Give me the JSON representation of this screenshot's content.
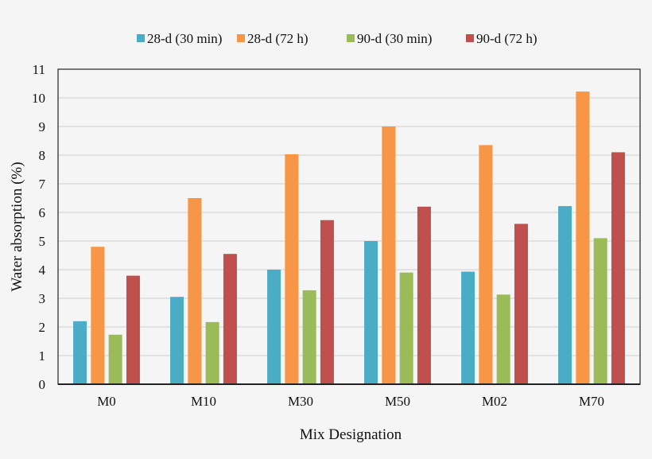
{
  "chart_data": {
    "type": "bar",
    "title": "",
    "xlabel": "Mix Designation",
    "ylabel": "Water absorption (%)",
    "ylim": [
      0,
      11
    ],
    "yticks": [
      0,
      1,
      2,
      3,
      4,
      5,
      6,
      7,
      8,
      9,
      10,
      11
    ],
    "grid": true,
    "legend_position": "top",
    "categories": [
      "M0",
      "M10",
      "M30",
      "M50",
      "M02",
      "M70"
    ],
    "series": [
      {
        "name": "28-d (30 min)",
        "color": "#4bacc6",
        "values": [
          2.2,
          3.05,
          4.0,
          5.0,
          3.93,
          6.22
        ]
      },
      {
        "name": "28-d (72 h)",
        "color": "#f79646",
        "values": [
          4.8,
          6.5,
          8.03,
          9.0,
          8.35,
          10.22
        ]
      },
      {
        "name": "90-d (30 min)",
        "color": "#9bbb59",
        "values": [
          1.73,
          2.17,
          3.28,
          3.9,
          3.13,
          5.1
        ]
      },
      {
        "name": "90-d (72 h)",
        "color": "#c0504d",
        "values": [
          3.79,
          4.55,
          5.73,
          6.2,
          5.6,
          8.1
        ]
      }
    ]
  }
}
